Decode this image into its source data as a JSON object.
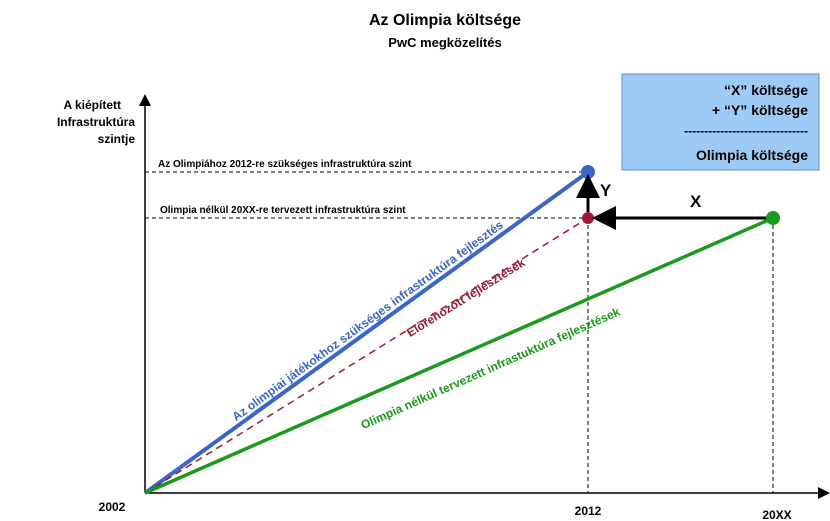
{
  "header": {
    "title": "Az Olimpia költsége",
    "subtitle": "PwC megközelítés"
  },
  "y_axis": {
    "label": [
      "A kiépített",
      "Infrastruktúra",
      "szintje"
    ]
  },
  "x_axis": {
    "labels": [
      "2002",
      "2012",
      "20XX"
    ]
  },
  "legend_box": {
    "lines": [
      "“X” költsége",
      "+ “Y” költsége",
      "-------------------------------",
      "Olimpia költsége"
    ]
  },
  "levels": [
    "Az Olimpiához 2012-re szükséges  infrastruktúra szint",
    "Olimpia nélkül 20XX-re tervezett infrastruktúra szint"
  ],
  "arrows": {
    "y": "Y",
    "x": "X"
  },
  "lines": [
    "Az olimpiai játékokhoz szükséges infrastruktúra fejlesztés",
    "Előrehozott fejlesztések",
    "Olimpia nélkül tervezett infrastuktúra fejlesztések"
  ]
}
